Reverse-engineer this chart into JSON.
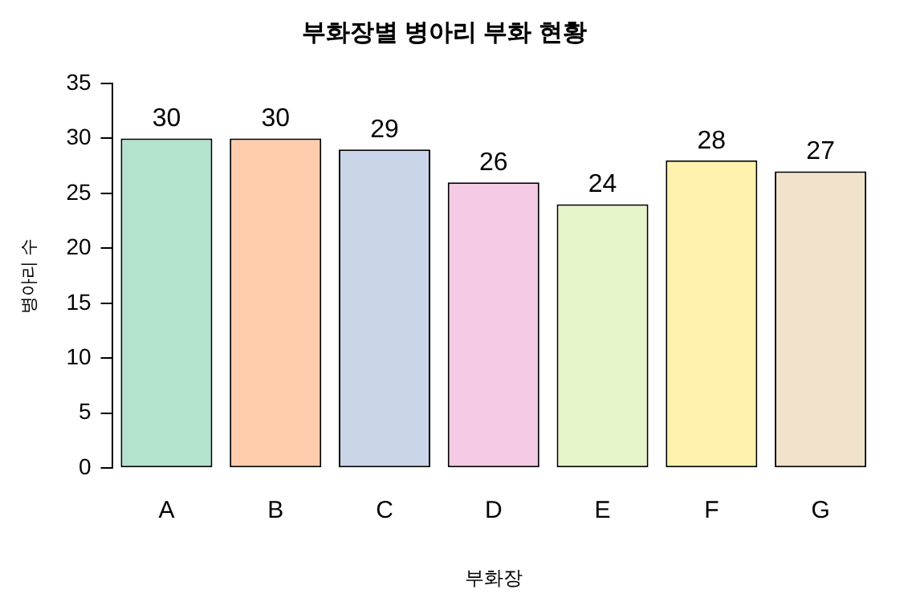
{
  "chart_data": {
    "type": "bar",
    "title": "부화장별 병아리 부화 현황",
    "xlabel": "부화장",
    "ylabel": "병아리 수",
    "categories": [
      "A",
      "B",
      "C",
      "D",
      "E",
      "F",
      "G"
    ],
    "values": [
      30,
      30,
      29,
      26,
      24,
      28,
      27
    ],
    "colors": [
      "#b3e2cd",
      "#fdcdac",
      "#cbd5e8",
      "#f4cae4",
      "#e6f5c9",
      "#fff2ae",
      "#f1e2cc"
    ],
    "ylim": [
      0,
      35
    ],
    "yticks": [
      0,
      5,
      10,
      15,
      20,
      25,
      30,
      35
    ],
    "grid": false,
    "legend": false,
    "data_labels": true
  }
}
